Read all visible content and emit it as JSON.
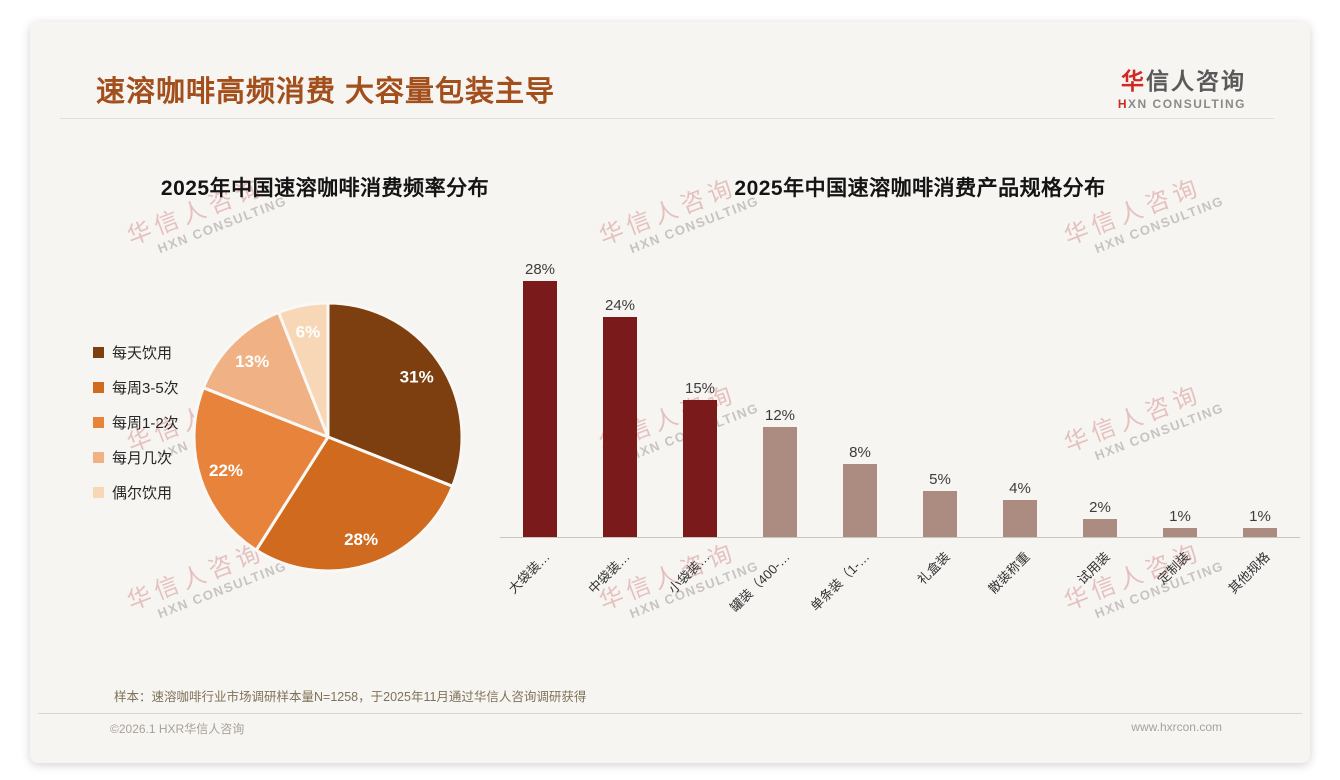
{
  "page": {
    "title": "速溶咖啡高频消费 大容量包装主导",
    "logo": {
      "cn_first": "华",
      "cn_rest": "信人咨询",
      "en_first": "H",
      "en_rest": "XN CONSULTING"
    },
    "watermark": {
      "cn": "华信人咨询",
      "en": "HXN CONSULTING"
    },
    "footer": {
      "note": "样本：速溶咖啡行业市场调研样本量N=1258，于2025年11月通过华信人咨询调研获得",
      "copyright": "©2026.1 HXR华信人咨询",
      "website": "www.hxrcon.com"
    }
  },
  "chart_data": [
    {
      "type": "pie",
      "title": "2025年中国速溶咖啡消费频率分布",
      "labels": [
        "每天饮用",
        "每周3-5次",
        "每周1-2次",
        "每月几次",
        "偶尔饮用"
      ],
      "values": [
        31,
        28,
        22,
        13,
        6
      ],
      "data_labels": [
        "31%",
        "28%",
        "22%",
        "13%",
        "6%"
      ],
      "colors": [
        "#7D3F10",
        "#CF6A1F",
        "#E8833C",
        "#F0B185",
        "#F7D7B5"
      ],
      "unit": "%",
      "start_angle_deg": 0,
      "direction": "clockwise",
      "legend_position": "left",
      "slice_border_color": "#FAF8F4"
    },
    {
      "type": "bar",
      "title": "2025年中国速溶咖啡消费产品规格分布",
      "categories": [
        "大袋装…",
        "中袋装…",
        "小袋装…",
        "罐装（400-…",
        "单条装（1-…",
        "礼盒装",
        "散装称重",
        "试用装",
        "定制装",
        "其他规格"
      ],
      "values": [
        28,
        24,
        15,
        12,
        8,
        5,
        4,
        2,
        1,
        1
      ],
      "data_labels": [
        "28%",
        "24%",
        "15%",
        "12%",
        "8%",
        "5%",
        "4%",
        "2%",
        "1%",
        "1%"
      ],
      "bar_colors": [
        "#7B1A1A",
        "#7B1A1A",
        "#7B1A1A",
        "#AC8B81",
        "#AC8B81",
        "#AC8B81",
        "#AC8B81",
        "#AC8B81",
        "#AC8B81",
        "#AC8B81"
      ],
      "ylabel": "",
      "xlabel": "",
      "ylim": [
        0,
        31
      ],
      "grid": false,
      "x_label_rotation_deg": -45
    }
  ]
}
